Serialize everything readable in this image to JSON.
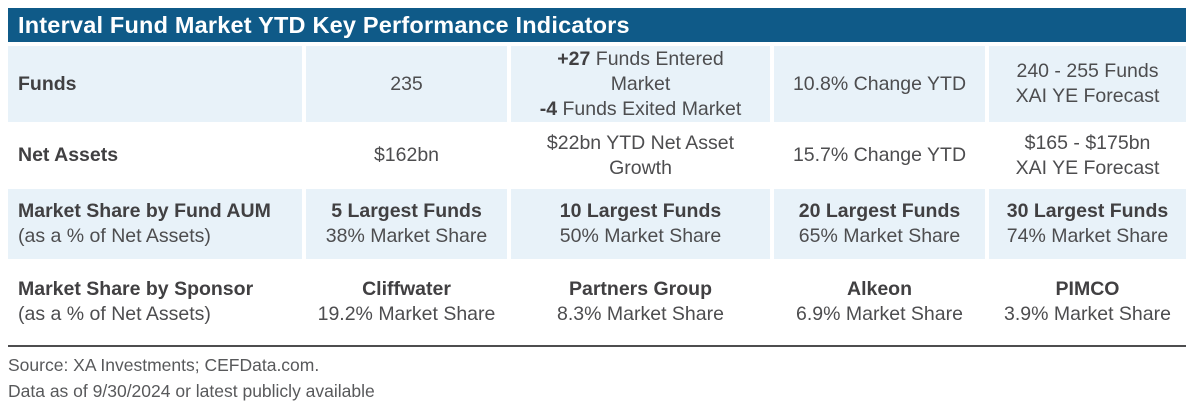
{
  "colors": {
    "header_bg": "#0F5A88",
    "row_highlight_bg": "#E8F2F9",
    "body_text": "#4D4D4F",
    "bold_text": "#414042",
    "footer_text": "#58595B",
    "title_text": "#FFFFFF"
  },
  "header": {
    "title": "Interval Fund Market YTD Key Performance Indicators"
  },
  "table": {
    "rows": [
      {
        "label": "Funds",
        "sublabel": "",
        "cells": [
          {
            "lines": [
              {
                "b": "",
                "t": "235"
              }
            ]
          },
          {
            "lines": [
              {
                "b": "+27",
                "t": " Funds Entered"
              },
              {
                "b": "",
                "t": "Market"
              },
              {
                "b": "-4",
                "t": " Funds Exited Market"
              }
            ]
          },
          {
            "lines": [
              {
                "b": "",
                "t": "10.8% Change YTD"
              }
            ]
          },
          {
            "lines": [
              {
                "b": "",
                "t": "240 - 255 Funds"
              },
              {
                "b": "",
                "t": "XAI YE Forecast"
              }
            ]
          }
        ]
      },
      {
        "label": "Net Assets",
        "sublabel": "",
        "cells": [
          {
            "lines": [
              {
                "b": "",
                "t": "$162bn"
              }
            ]
          },
          {
            "lines": [
              {
                "b": "",
                "t": "$22bn YTD Net Asset"
              },
              {
                "b": "",
                "t": "Growth"
              }
            ]
          },
          {
            "lines": [
              {
                "b": "",
                "t": "15.7% Change YTD"
              }
            ]
          },
          {
            "lines": [
              {
                "b": "",
                "t": "$165 - $175bn"
              },
              {
                "b": "",
                "t": "XAI YE Forecast"
              }
            ]
          }
        ]
      },
      {
        "label": "Market Share by Fund AUM",
        "sublabel": "(as a % of Net Assets)",
        "cells": [
          {
            "lines": [
              {
                "b": "5 Largest Funds",
                "t": ""
              },
              {
                "b": "",
                "t": "38% Market Share"
              }
            ]
          },
          {
            "lines": [
              {
                "b": "10 Largest Funds",
                "t": ""
              },
              {
                "b": "",
                "t": "50% Market Share"
              }
            ]
          },
          {
            "lines": [
              {
                "b": "20 Largest Funds",
                "t": ""
              },
              {
                "b": "",
                "t": "65% Market Share"
              }
            ]
          },
          {
            "lines": [
              {
                "b": "30 Largest Funds",
                "t": ""
              },
              {
                "b": "",
                "t": "74% Market Share"
              }
            ]
          }
        ]
      },
      {
        "label": "Market Share by Sponsor",
        "sublabel": "(as a % of Net Assets)",
        "cells": [
          {
            "lines": [
              {
                "b": "Cliffwater",
                "t": ""
              },
              {
                "b": "",
                "t": "19.2% Market Share"
              }
            ]
          },
          {
            "lines": [
              {
                "b": "Partners Group",
                "t": ""
              },
              {
                "b": "",
                "t": "8.3% Market Share"
              }
            ]
          },
          {
            "lines": [
              {
                "b": "Alkeon",
                "t": ""
              },
              {
                "b": "",
                "t": "6.9% Market Share"
              }
            ]
          },
          {
            "lines": [
              {
                "b": "PIMCO",
                "t": ""
              },
              {
                "b": "",
                "t": "3.9% Market Share"
              }
            ]
          }
        ]
      }
    ]
  },
  "footer": {
    "source": "Source: XA Investments; CEFData.com.",
    "as_of": "Data as of 9/30/2024 or latest publicly available"
  },
  "chart_data": {
    "type": "table",
    "title": "Interval Fund Market YTD Key Performance Indicators",
    "rows": [
      {
        "metric": "Funds",
        "current": "235",
        "ytd_activity": "+27 Funds Entered Market; -4 Funds Exited Market",
        "change_ytd": "10.8% Change YTD",
        "forecast": "240 - 255 Funds XAI YE Forecast"
      },
      {
        "metric": "Net Assets",
        "current": "$162bn",
        "ytd_activity": "$22bn YTD Net Asset Growth",
        "change_ytd": "15.7% Change YTD",
        "forecast": "$165 - $175bn XAI YE Forecast"
      },
      {
        "metric": "Market Share by Fund AUM (as a % of Net Assets)",
        "values": [
          {
            "group": "5 Largest Funds",
            "share_pct": 38
          },
          {
            "group": "10 Largest Funds",
            "share_pct": 50
          },
          {
            "group": "20 Largest Funds",
            "share_pct": 65
          },
          {
            "group": "30 Largest Funds",
            "share_pct": 74
          }
        ]
      },
      {
        "metric": "Market Share by Sponsor (as a % of Net Assets)",
        "values": [
          {
            "group": "Cliffwater",
            "share_pct": 19.2
          },
          {
            "group": "Partners Group",
            "share_pct": 8.3
          },
          {
            "group": "Alkeon",
            "share_pct": 6.9
          },
          {
            "group": "PIMCO",
            "share_pct": 3.9
          }
        ]
      }
    ],
    "source": "Source: XA Investments; CEFData.com.",
    "as_of": "Data as of 9/30/2024 or latest publicly available"
  }
}
